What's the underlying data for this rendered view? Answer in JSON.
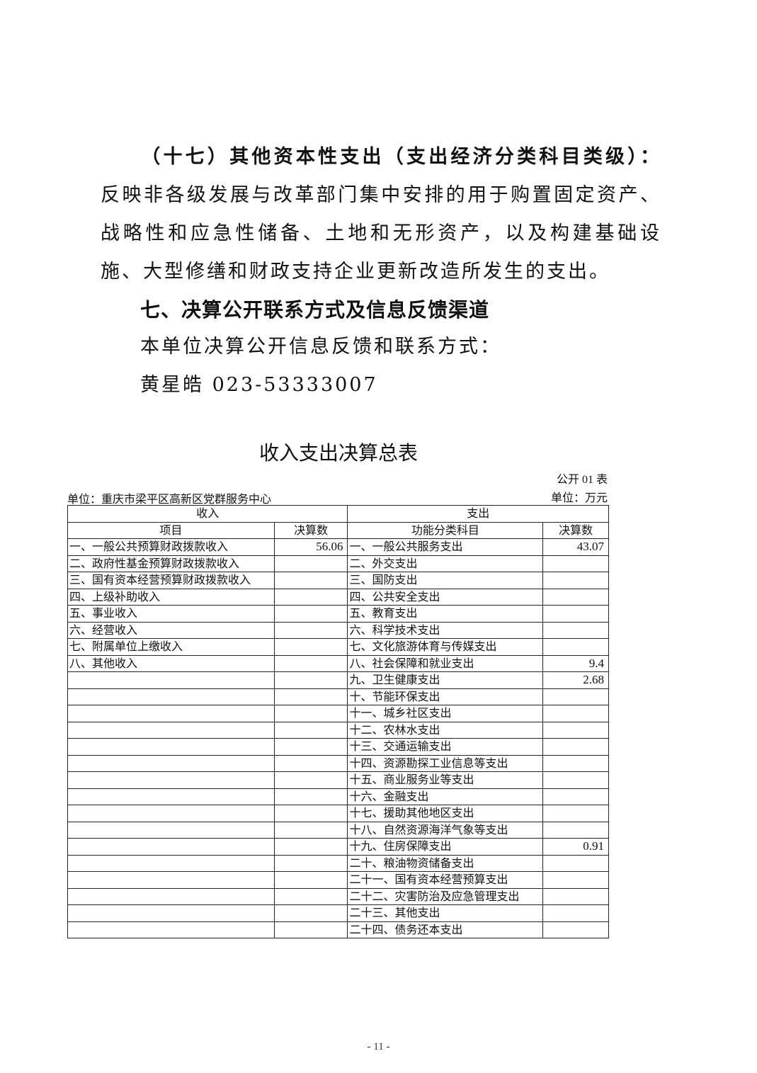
{
  "body": {
    "para_lead": "（十七）其他资本性支出（支出经济分类科目类级）：",
    "para_text": "反映非各级发展与改革部门集中安排的用于购置固定资产、战略性和应急性储备、土地和无形资产，以及构建基础设施、大型修缮和财政支持企业更新改造所发生的支出。",
    "heading": "七、决算公开联系方式及信息反馈渠道",
    "contact_intro": "本单位决算公开信息反馈和联系方式：",
    "contact": "黄星皓 023-53333007"
  },
  "table": {
    "title": "收入支出决算总表",
    "code": "公开 01 表",
    "unit_org": "单位：重庆市梁平区高新区党群服务中心",
    "unit_currency": "单位：万元",
    "income_header": "收入",
    "expense_header": "支出",
    "col_item": "项目",
    "col_amount": "决算数",
    "col_func": "功能分类科目",
    "col_amount2": "决算数",
    "income": [
      {
        "label": "一、一般公共预算财政拨款收入",
        "value": "56.06"
      },
      {
        "label": "二、政府性基金预算财政拨款收入",
        "value": ""
      },
      {
        "label": "三、国有资本经营预算财政拨款收入",
        "value": ""
      },
      {
        "label": "四、上级补助收入",
        "value": ""
      },
      {
        "label": "五、事业收入",
        "value": ""
      },
      {
        "label": "六、经营收入",
        "value": ""
      },
      {
        "label": "七、附属单位上缴收入",
        "value": ""
      },
      {
        "label": "八、其他收入",
        "value": ""
      }
    ],
    "expense": [
      {
        "label": "一、一般公共服务支出",
        "value": "43.07"
      },
      {
        "label": "二、外交支出",
        "value": ""
      },
      {
        "label": "三、国防支出",
        "value": ""
      },
      {
        "label": "四、公共安全支出",
        "value": ""
      },
      {
        "label": "五、教育支出",
        "value": ""
      },
      {
        "label": "六、科学技术支出",
        "value": ""
      },
      {
        "label": "七、文化旅游体育与传媒支出",
        "value": ""
      },
      {
        "label": "八、社会保障和就业支出",
        "value": "9.4"
      },
      {
        "label": "九、卫生健康支出",
        "value": "2.68"
      },
      {
        "label": "十、节能环保支出",
        "value": ""
      },
      {
        "label": "十一、城乡社区支出",
        "value": ""
      },
      {
        "label": "十二、农林水支出",
        "value": ""
      },
      {
        "label": "十三、交通运输支出",
        "value": ""
      },
      {
        "label": "十四、资源勘探工业信息等支出",
        "value": ""
      },
      {
        "label": "十五、商业服务业等支出",
        "value": ""
      },
      {
        "label": "十六、金融支出",
        "value": ""
      },
      {
        "label": "十七、援助其他地区支出",
        "value": ""
      },
      {
        "label": "十八、自然资源海洋气象等支出",
        "value": ""
      },
      {
        "label": "十九、住房保障支出",
        "value": "0.91"
      },
      {
        "label": "二十、粮油物资储备支出",
        "value": ""
      },
      {
        "label": "二十一、国有资本经营预算支出",
        "value": ""
      },
      {
        "label": "二十二、灾害防治及应急管理支出",
        "value": ""
      },
      {
        "label": "二十三、其他支出",
        "value": ""
      },
      {
        "label": "二十四、债务还本支出",
        "value": ""
      }
    ]
  },
  "footer": {
    "page_number": "- 11 -"
  }
}
